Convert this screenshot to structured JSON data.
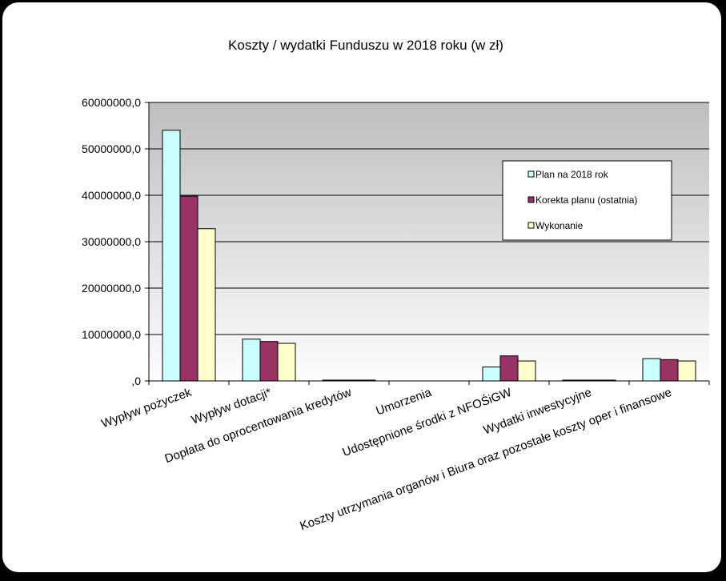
{
  "chart_data": {
    "type": "bar",
    "title": "Koszty / wydatki Funduszu  w 2018 roku (w zł)",
    "categories": [
      "Wypływ pożyczek",
      "Wypływ dotacji*",
      "Dopłata do oprocentowania kredytów",
      "Umorzenia",
      "Udostępnione środki z NFOŚiGW",
      "Wydatki inwestycyjne",
      "Koszty utrzymania organów i Biura oraz pozostałe koszty oper i finansowe"
    ],
    "series": [
      {
        "name": "Plan na 2018  rok",
        "color": "#CCFFFF",
        "values": [
          54000000,
          9000000,
          150000,
          0,
          3000000,
          150000,
          4800000
        ]
      },
      {
        "name": "Korekta planu (ostatnia)",
        "color": "#993366",
        "values": [
          39800000,
          8500000,
          150000,
          0,
          5400000,
          150000,
          4600000
        ]
      },
      {
        "name": "Wykonanie",
        "color": "#FFFFCC",
        "values": [
          32800000,
          8100000,
          120000,
          0,
          4300000,
          120000,
          4300000
        ]
      }
    ],
    "ylim": [
      0,
      60000000
    ],
    "yticks": [
      0,
      10000000,
      20000000,
      30000000,
      40000000,
      50000000,
      60000000
    ],
    "ytick_labels": [
      ",0",
      "10000000,0",
      "20000000,0",
      "30000000,0",
      "40000000,0",
      "50000000,0",
      "60000000,0"
    ],
    "xlabel": "",
    "ylabel": "",
    "grid": true,
    "legend_position": "top-right"
  }
}
